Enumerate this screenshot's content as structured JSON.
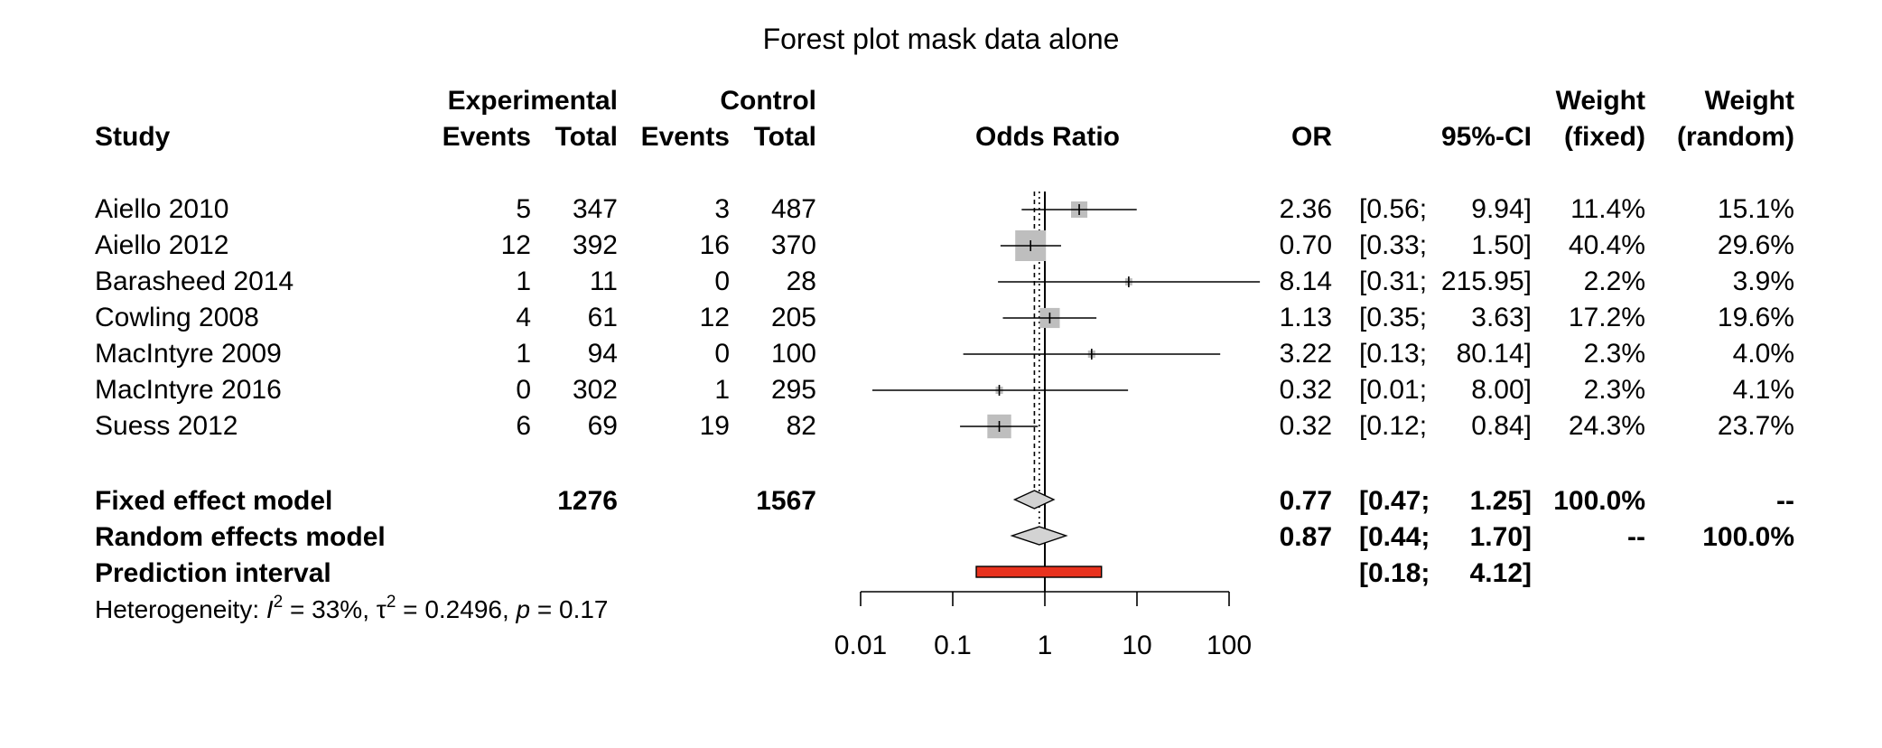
{
  "title": "Forest plot mask data alone",
  "header": {
    "study": "Study",
    "experimental": "Experimental",
    "control": "Control",
    "events": "Events",
    "total": "Total",
    "odds_ratio": "Odds Ratio",
    "or": "OR",
    "ci": "95%-CI",
    "weight": "Weight",
    "fixed": "(fixed)",
    "random": "(random)"
  },
  "studies": [
    {
      "name": "Aiello 2010",
      "e_events": "5",
      "e_total": "347",
      "c_events": "3",
      "c_total": "487",
      "or": "2.36",
      "ci_low": "[0.56;",
      "ci_high": "9.94]",
      "w_fixed": "11.4%",
      "w_random": "15.1%"
    },
    {
      "name": "Aiello 2012",
      "e_events": "12",
      "e_total": "392",
      "c_events": "16",
      "c_total": "370",
      "or": "0.70",
      "ci_low": "[0.33;",
      "ci_high": "1.50]",
      "w_fixed": "40.4%",
      "w_random": "29.6%"
    },
    {
      "name": "Barasheed 2014",
      "e_events": "1",
      "e_total": "11",
      "c_events": "0",
      "c_total": "28",
      "or": "8.14",
      "ci_low": "[0.31;",
      "ci_high": "215.95]",
      "w_fixed": "2.2%",
      "w_random": "3.9%"
    },
    {
      "name": "Cowling 2008",
      "e_events": "4",
      "e_total": "61",
      "c_events": "12",
      "c_total": "205",
      "or": "1.13",
      "ci_low": "[0.35;",
      "ci_high": "3.63]",
      "w_fixed": "17.2%",
      "w_random": "19.6%"
    },
    {
      "name": "MacIntyre 2009",
      "e_events": "1",
      "e_total": "94",
      "c_events": "0",
      "c_total": "100",
      "or": "3.22",
      "ci_low": "[0.13;",
      "ci_high": "80.14]",
      "w_fixed": "2.3%",
      "w_random": "4.0%"
    },
    {
      "name": "MacIntyre 2016",
      "e_events": "0",
      "e_total": "302",
      "c_events": "1",
      "c_total": "295",
      "or": "0.32",
      "ci_low": "[0.01;",
      "ci_high": "8.00]",
      "w_fixed": "2.3%",
      "w_random": "4.1%"
    },
    {
      "name": "Suess 2012",
      "e_events": "6",
      "e_total": "69",
      "c_events": "19",
      "c_total": "82",
      "or": "0.32",
      "ci_low": "[0.12;",
      "ci_high": "0.84]",
      "w_fixed": "24.3%",
      "w_random": "23.7%"
    }
  ],
  "fixed_model": {
    "label": "Fixed effect model",
    "e_total": "1276",
    "c_total": "1567",
    "or": "0.77",
    "ci_low": "[0.47;",
    "ci_high": "1.25]",
    "w_fixed": "100.0%",
    "w_random": "--"
  },
  "random_model": {
    "label": "Random effects model",
    "or": "0.87",
    "ci_low": "[0.44;",
    "ci_high": "1.70]",
    "w_fixed": "--",
    "w_random": "100.0%"
  },
  "prediction": {
    "label": "Prediction interval",
    "ci_low": "[0.18;",
    "ci_high": "4.12]"
  },
  "heterogeneity": {
    "prefix": "Heterogeneity: ",
    "i2_sym": "I",
    "i2_sup": "2",
    "i2_val": " = 33%, ",
    "tau_sym": "τ",
    "tau_sup": "2",
    "tau_val": " = 0.2496, ",
    "p_sym": "p",
    "p_val": " = 0.17"
  },
  "colors": {
    "box": "#bebebe",
    "diamond": "#d3d3d3",
    "prediction": "#e8321e",
    "line": "#000000"
  },
  "chart_data": {
    "type": "forest",
    "title": "Forest plot mask data alone",
    "xlabel": "Odds Ratio",
    "x_scale": "log",
    "x_ticks": [
      "0.01",
      "0.1",
      "1",
      "10",
      "100"
    ],
    "xlim": [
      0.01,
      100
    ],
    "null_line": 1,
    "studies": [
      {
        "name": "Aiello 2010",
        "or": 2.36,
        "lower": 0.56,
        "upper": 9.94,
        "weight_fixed": 11.4
      },
      {
        "name": "Aiello 2012",
        "or": 0.7,
        "lower": 0.33,
        "upper": 1.5,
        "weight_fixed": 40.4
      },
      {
        "name": "Barasheed 2014",
        "or": 8.14,
        "lower": 0.31,
        "upper": 215.95,
        "weight_fixed": 2.2
      },
      {
        "name": "Cowling 2008",
        "or": 1.13,
        "lower": 0.35,
        "upper": 3.63,
        "weight_fixed": 17.2
      },
      {
        "name": "MacIntyre 2009",
        "or": 3.22,
        "lower": 0.13,
        "upper": 80.14,
        "weight_fixed": 2.3
      },
      {
        "name": "MacIntyre 2016",
        "or": 0.32,
        "lower": 0.01,
        "upper": 8.0,
        "weight_fixed": 2.3
      },
      {
        "name": "Suess 2012",
        "or": 0.32,
        "lower": 0.12,
        "upper": 0.84,
        "weight_fixed": 24.3
      }
    ],
    "fixed": {
      "or": 0.77,
      "lower": 0.47,
      "upper": 1.25
    },
    "random": {
      "or": 0.87,
      "lower": 0.44,
      "upper": 1.7
    },
    "prediction": {
      "lower": 0.18,
      "upper": 4.12
    }
  }
}
